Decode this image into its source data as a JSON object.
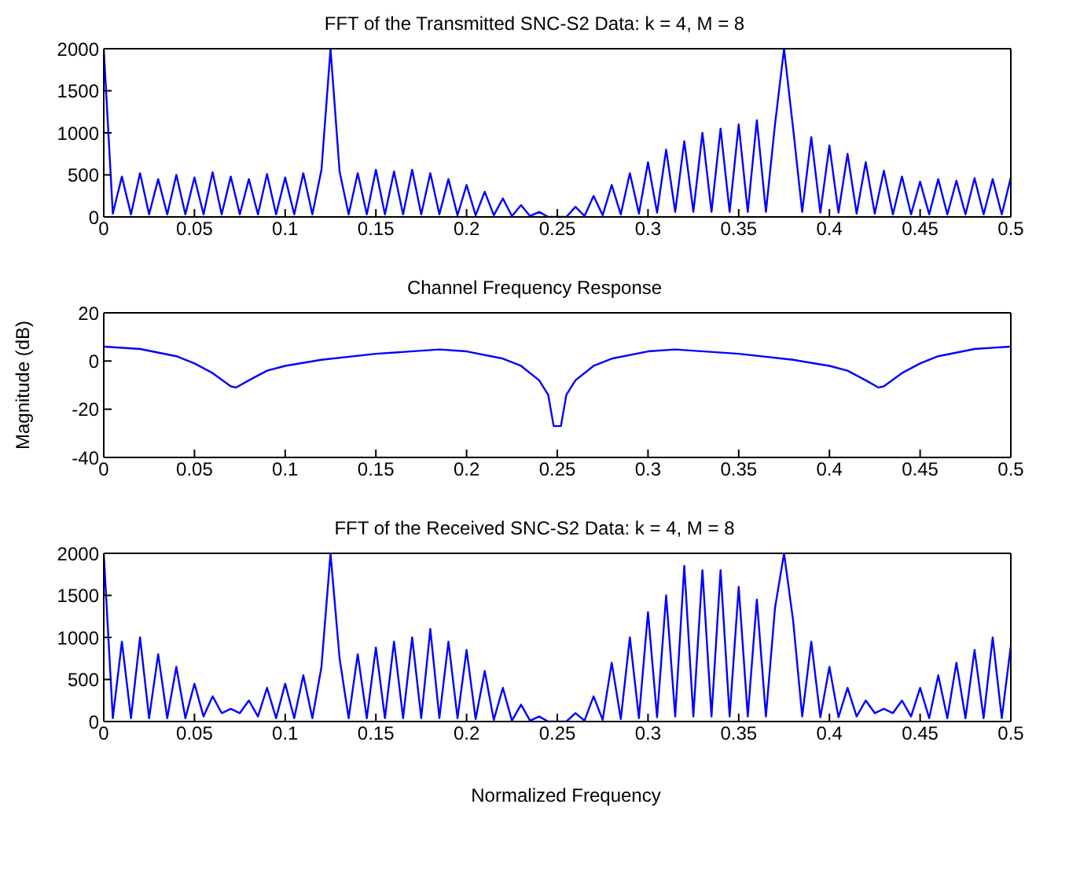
{
  "chart_data": [
    {
      "type": "line",
      "title": "FFT of the Transmitted SNC-S2 Data: k = 4, M = 8",
      "xlim": [
        0,
        0.5
      ],
      "xticks": [
        0,
        0.05,
        0.1,
        0.15,
        0.2,
        0.25,
        0.3,
        0.35,
        0.4,
        0.45,
        0.5
      ],
      "ylim": [
        0,
        2000
      ],
      "yticks": [
        0,
        500,
        1000,
        1500,
        2000
      ],
      "grid": false,
      "x": [
        0,
        0.005,
        0.01,
        0.015,
        0.02,
        0.025,
        0.03,
        0.035,
        0.04,
        0.045,
        0.05,
        0.055,
        0.06,
        0.065,
        0.07,
        0.075,
        0.08,
        0.085,
        0.09,
        0.095,
        0.1,
        0.105,
        0.11,
        0.115,
        0.12,
        0.125,
        0.13,
        0.135,
        0.14,
        0.145,
        0.15,
        0.155,
        0.16,
        0.165,
        0.17,
        0.175,
        0.18,
        0.185,
        0.19,
        0.195,
        0.2,
        0.205,
        0.21,
        0.215,
        0.22,
        0.225,
        0.23,
        0.235,
        0.24,
        0.245,
        0.25,
        0.255,
        0.26,
        0.265,
        0.27,
        0.275,
        0.28,
        0.285,
        0.29,
        0.295,
        0.3,
        0.305,
        0.31,
        0.315,
        0.32,
        0.325,
        0.33,
        0.335,
        0.34,
        0.345,
        0.35,
        0.355,
        0.36,
        0.365,
        0.37,
        0.375,
        0.38,
        0.385,
        0.39,
        0.395,
        0.4,
        0.405,
        0.41,
        0.415,
        0.42,
        0.425,
        0.43,
        0.435,
        0.44,
        0.445,
        0.45,
        0.455,
        0.46,
        0.465,
        0.47,
        0.475,
        0.48,
        0.485,
        0.49,
        0.495,
        0.5
      ],
      "series": [
        {
          "color": "#0000ff",
          "values": [
            2000,
            40,
            480,
            30,
            520,
            30,
            450,
            30,
            500,
            30,
            470,
            30,
            530,
            30,
            480,
            30,
            450,
            30,
            510,
            30,
            470,
            30,
            520,
            30,
            560,
            2000,
            540,
            30,
            520,
            30,
            560,
            30,
            540,
            30,
            560,
            30,
            520,
            30,
            450,
            20,
            380,
            20,
            300,
            20,
            220,
            10,
            140,
            10,
            60,
            0,
            0,
            0,
            120,
            10,
            250,
            20,
            380,
            30,
            520,
            40,
            650,
            50,
            800,
            60,
            900,
            60,
            1000,
            60,
            1050,
            60,
            1100,
            60,
            1150,
            60,
            1100,
            2000,
            1050,
            60,
            950,
            50,
            850,
            50,
            750,
            40,
            650,
            40,
            550,
            30,
            480,
            30,
            420,
            30,
            450,
            30,
            430,
            30,
            460,
            30,
            450,
            30,
            470
          ]
        }
      ]
    },
    {
      "type": "line",
      "title": "Channel Frequency Response",
      "ylabel": "Magnitude (dB)",
      "xlim": [
        0,
        0.5
      ],
      "xticks": [
        0,
        0.05,
        0.1,
        0.15,
        0.2,
        0.25,
        0.3,
        0.35,
        0.4,
        0.45,
        0.5
      ],
      "ylim": [
        -40,
        20
      ],
      "yticks": [
        -40,
        -20,
        0,
        20
      ],
      "grid": false,
      "x": [
        0,
        0.02,
        0.04,
        0.05,
        0.06,
        0.07,
        0.073,
        0.08,
        0.09,
        0.1,
        0.12,
        0.15,
        0.185,
        0.2,
        0.22,
        0.23,
        0.24,
        0.245,
        0.248,
        0.252,
        0.255,
        0.26,
        0.27,
        0.28,
        0.3,
        0.315,
        0.35,
        0.38,
        0.4,
        0.41,
        0.42,
        0.427,
        0.43,
        0.44,
        0.45,
        0.46,
        0.48,
        0.5
      ],
      "series": [
        {
          "color": "#0000ff",
          "values": [
            6,
            5,
            2,
            -1,
            -5,
            -10.5,
            -11,
            -8,
            -4,
            -2,
            0.5,
            3,
            4.8,
            4,
            1,
            -2,
            -8,
            -14,
            -27,
            -27,
            -14,
            -8,
            -2,
            1,
            4,
            4.8,
            3,
            0.5,
            -2,
            -4,
            -8,
            -11,
            -10.5,
            -5,
            -1,
            2,
            5,
            6
          ]
        }
      ]
    },
    {
      "type": "line",
      "title": "FFT of the Received SNC-S2 Data: k = 4, M = 8",
      "xlabel": "Normalized Frequency",
      "xlim": [
        0,
        0.5
      ],
      "xticks": [
        0,
        0.05,
        0.1,
        0.15,
        0.2,
        0.25,
        0.3,
        0.35,
        0.4,
        0.45,
        0.5
      ],
      "ylim": [
        0,
        2000
      ],
      "yticks": [
        0,
        500,
        1000,
        1500,
        2000
      ],
      "grid": false,
      "x": [
        0,
        0.005,
        0.01,
        0.015,
        0.02,
        0.025,
        0.03,
        0.035,
        0.04,
        0.045,
        0.05,
        0.055,
        0.06,
        0.065,
        0.07,
        0.075,
        0.08,
        0.085,
        0.09,
        0.095,
        0.1,
        0.105,
        0.11,
        0.115,
        0.12,
        0.125,
        0.13,
        0.135,
        0.14,
        0.145,
        0.15,
        0.155,
        0.16,
        0.165,
        0.17,
        0.175,
        0.18,
        0.185,
        0.19,
        0.195,
        0.2,
        0.205,
        0.21,
        0.215,
        0.22,
        0.225,
        0.23,
        0.235,
        0.24,
        0.245,
        0.25,
        0.255,
        0.26,
        0.265,
        0.27,
        0.275,
        0.28,
        0.285,
        0.29,
        0.295,
        0.3,
        0.305,
        0.31,
        0.315,
        0.32,
        0.325,
        0.33,
        0.335,
        0.34,
        0.345,
        0.35,
        0.355,
        0.36,
        0.365,
        0.37,
        0.375,
        0.38,
        0.385,
        0.39,
        0.395,
        0.4,
        0.405,
        0.41,
        0.415,
        0.42,
        0.425,
        0.43,
        0.435,
        0.44,
        0.445,
        0.45,
        0.455,
        0.46,
        0.465,
        0.47,
        0.475,
        0.48,
        0.485,
        0.49,
        0.495,
        0.5
      ],
      "series": [
        {
          "color": "#0000ff",
          "values": [
            2000,
            40,
            950,
            40,
            1000,
            40,
            800,
            40,
            650,
            40,
            450,
            60,
            300,
            100,
            150,
            100,
            250,
            60,
            400,
            40,
            450,
            40,
            550,
            40,
            650,
            2000,
            750,
            40,
            800,
            40,
            880,
            40,
            950,
            40,
            1000,
            40,
            1100,
            40,
            950,
            40,
            850,
            30,
            600,
            20,
            400,
            10,
            200,
            10,
            60,
            0,
            0,
            0,
            100,
            10,
            300,
            20,
            700,
            30,
            1000,
            40,
            1300,
            50,
            1500,
            60,
            1850,
            60,
            1800,
            60,
            1800,
            60,
            1600,
            60,
            1450,
            60,
            1350,
            2000,
            1200,
            60,
            950,
            50,
            650,
            50,
            400,
            60,
            250,
            100,
            150,
            100,
            250,
            60,
            400,
            40,
            550,
            40,
            700,
            40,
            850,
            40,
            1000,
            40,
            900
          ]
        }
      ]
    }
  ]
}
